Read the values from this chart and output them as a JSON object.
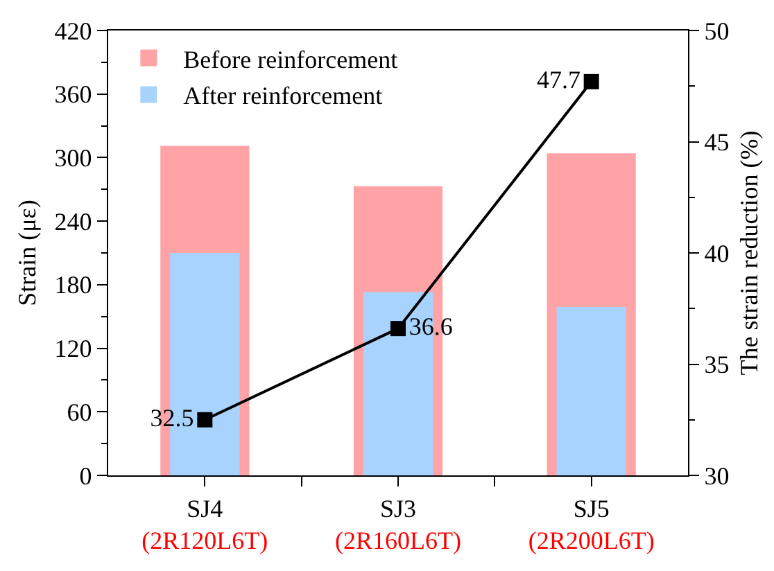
{
  "chart_data": {
    "type": "bar",
    "categories": [
      "SJ4\n(2R120L6T)",
      "SJ3\n(2R160L6T)",
      "SJ5\n(2R200L6T)"
    ],
    "ylabel": "Strain (με)",
    "y2label": "The strain reduction (%)",
    "ylim": [
      0,
      420
    ],
    "yticks": [
      0,
      {
        "value": 30,
        "label": null
      },
      60,
      {
        "value": 90,
        "label": null
      },
      120,
      {
        "value": 150,
        "label": null
      },
      180,
      {
        "value": 210,
        "label": null
      },
      240,
      {
        "value": 270,
        "label": null
      },
      300,
      {
        "value": 330,
        "label": null
      },
      360,
      {
        "value": 390,
        "label": null
      },
      420
    ],
    "y2lim": [
      30,
      50
    ],
    "y2ticks": [
      30,
      {
        "value": 32.5,
        "label": null
      },
      35,
      {
        "value": 37.5,
        "label": null
      },
      40,
      {
        "value": 42.5,
        "label": null
      },
      45,
      {
        "value": 47.5,
        "label": null
      },
      50
    ],
    "legend": "top left",
    "series": [
      {
        "name": "Before reinforcement",
        "color": "#ffa3a6",
        "values": [
          311,
          273,
          304
        ]
      },
      {
        "name": "After reinforcement",
        "color": "#a8d3fc",
        "values": [
          210,
          173,
          159
        ]
      },
      {
        "type": "line",
        "axis": "y2",
        "color": "#000000",
        "marker": "square",
        "values": [
          32.5,
          36.6,
          47.7
        ],
        "value_labels": [
          "32.5",
          "36.6",
          "47.7"
        ]
      }
    ]
  }
}
